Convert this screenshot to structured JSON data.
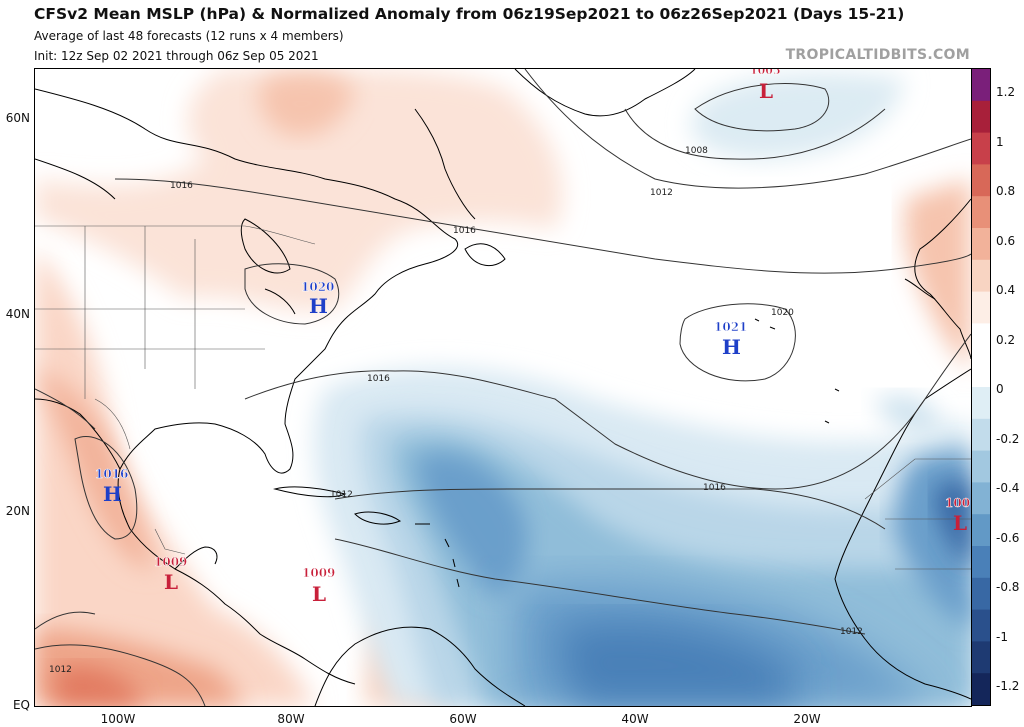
{
  "header": {
    "title": "CFSv2 Mean MSLP (hPa) & Normalized Anomaly from 06z19Sep2021 to 06z26Sep2021 (Days 15-21)",
    "subtitle1": "Average of last 48 forecasts (12 runs x 4 members)",
    "subtitle2": "Init: 12z Sep 02 2021 through 06z Sep 05 2021",
    "site": "TROPICALTIDBITS.COM"
  },
  "axes": {
    "lat_labels": [
      "60N",
      "40N",
      "20N",
      "EQ"
    ],
    "lon_labels": [
      "100W",
      "80W",
      "60W",
      "40W",
      "20W"
    ]
  },
  "pressure_centers": [
    {
      "type": "L",
      "value": "1005"
    },
    {
      "type": "H",
      "value": "1020"
    },
    {
      "type": "H",
      "value": "1021"
    },
    {
      "type": "H",
      "value": "1016"
    },
    {
      "type": "L",
      "value": "1009"
    },
    {
      "type": "L",
      "value": "1009"
    },
    {
      "type": "L",
      "value": "100"
    }
  ],
  "isobar_labels": [
    "1008",
    "1012",
    "1016",
    "1016",
    "1020",
    "1016",
    "1012",
    "1016",
    "1012",
    "1012"
  ],
  "colorbar": {
    "labels": [
      "1.2",
      "1",
      "0.8",
      "0.6",
      "0.4",
      "0.2",
      "0",
      "-0.2",
      "-0.4",
      "-0.6",
      "-0.8",
      "-1",
      "-1.2"
    ],
    "colors": [
      "#7a1f7a",
      "#a8203a",
      "#c8404a",
      "#d86858",
      "#e89078",
      "#f2b29a",
      "#f8d4c2",
      "#fdeee6",
      "#ffffff",
      "#ffffff",
      "#dfeef5",
      "#c2dceb",
      "#a2c8e0",
      "#82b2d4",
      "#6299c6",
      "#4a80b8",
      "#3868a4",
      "#2a508c",
      "#1e3a72",
      "#14265a"
    ]
  }
}
